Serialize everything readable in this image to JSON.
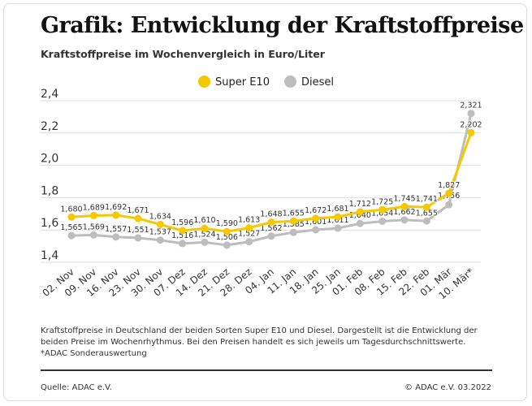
{
  "title": "Grafik: Entwicklung der Kraftstoffpreise",
  "subtitle": "Kraftstoffpreise im Wochenvergleich in Euro/Liter",
  "footnote": "Kraftstoffpreise in Deutschland der beiden Sorten Super E10 und Diesel. Dargestellt ist die Entwicklung der beiden Preise im Wochenrhythmus. Bei den Preisen handelt es sich jeweils um Tagesdurchschnittswerte. *ADAC Sonderauswertung",
  "source": "Quelle: ADAC e.V.",
  "copyright": "© ADAC e.V. 03.2022",
  "chart_data": {
    "type": "line",
    "title": "",
    "xlabel": "",
    "ylabel": "",
    "ylim": [
      1.4,
      2.4
    ],
    "yticks": [
      "1,4",
      "1,6",
      "1,8",
      "2,0",
      "2,2",
      "2,4"
    ],
    "grid": true,
    "legend": "top",
    "categories": [
      "02. Nov",
      "09. Nov",
      "16. Nov",
      "23. Nov",
      "30. Nov",
      "07. Dez",
      "14. Dez",
      "21. Dez",
      "28. Dez",
      "04. Jan",
      "11. Jan",
      "18. Jan",
      "25. Jan",
      "01. Feb",
      "08. Feb",
      "15. Feb",
      "22. Feb",
      "01. Mär",
      "10. Mär*"
    ],
    "series": [
      {
        "name": "Super E10",
        "color": "#f5c800",
        "values": [
          1.68,
          1.689,
          1.692,
          1.671,
          1.634,
          1.596,
          1.61,
          1.59,
          1.613,
          1.648,
          1.655,
          1.672,
          1.681,
          1.712,
          1.725,
          1.745,
          1.741,
          1.827,
          2.202
        ]
      },
      {
        "name": "Diesel",
        "color": "#bdbdbd",
        "values": [
          1.565,
          1.569,
          1.557,
          1.551,
          1.537,
          1.516,
          1.524,
          1.506,
          1.527,
          1.562,
          1.585,
          1.601,
          1.611,
          1.64,
          1.654,
          1.662,
          1.655,
          1.756,
          2.321
        ]
      }
    ]
  }
}
